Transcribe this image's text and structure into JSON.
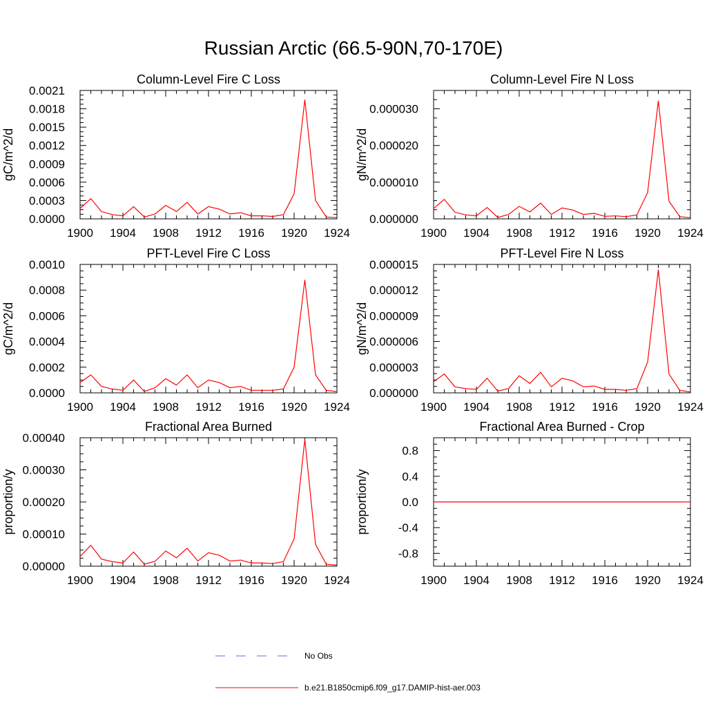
{
  "page": {
    "title": "Russian Arctic (66.5-90N,70-170E)"
  },
  "legend": {
    "items": [
      {
        "label": "No Obs",
        "style": "dashed",
        "color": "#6b6bd6"
      },
      {
        "label": "b.e21.B1850cmip6.f09_g17.DAMIP-hist-aer.003",
        "style": "solid",
        "color": "#ff0000"
      }
    ]
  },
  "chart_data": [
    {
      "type": "line",
      "title": "Column-Level Fire C Loss",
      "ylabel": "gC/m^2/d",
      "xlim": [
        1900,
        1924
      ],
      "ylim": [
        0,
        0.0021
      ],
      "xticks": [
        "1900",
        "1904",
        "1908",
        "1912",
        "1916",
        "1920",
        "1924"
      ],
      "yticks": [
        "0.0000",
        "0.0003",
        "0.0006",
        "0.0009",
        "0.0012",
        "0.0015",
        "0.0018",
        "0.0021"
      ],
      "series": [
        {
          "color": "#ff0000",
          "x": [
            1900,
            1901,
            1902,
            1903,
            1904,
            1905,
            1906,
            1907,
            1908,
            1909,
            1910,
            1911,
            1912,
            1913,
            1914,
            1915,
            1916,
            1917,
            1918,
            1919,
            1920,
            1921,
            1922,
            1923,
            1924
          ],
          "values": [
            0.00017,
            0.00033,
            0.00012,
            7e-05,
            5e-05,
            0.0002,
            3e-05,
            8e-05,
            0.00022,
            0.00012,
            0.00027,
            8e-05,
            0.0002,
            0.00016,
            8e-05,
            0.0001,
            5e-05,
            5e-05,
            4e-05,
            7e-05,
            0.00041,
            0.00195,
            0.0003,
            3e-05,
            2e-05
          ]
        }
      ]
    },
    {
      "type": "line",
      "title": "Column-Level Fire N Loss",
      "ylabel": "gN/m^2/d",
      "xlim": [
        1900,
        1924
      ],
      "ylim": [
        0,
        3.5e-05
      ],
      "xticks": [
        "1900",
        "1904",
        "1908",
        "1912",
        "1916",
        "1920",
        "1924"
      ],
      "yticks": [
        "0.000000",
        "0.000010",
        "0.000020",
        "0.000030"
      ],
      "series": [
        {
          "color": "#ff0000",
          "x": [
            1900,
            1901,
            1902,
            1903,
            1904,
            1905,
            1906,
            1907,
            1908,
            1909,
            1910,
            1911,
            1912,
            1913,
            1914,
            1915,
            1916,
            1917,
            1918,
            1919,
            1920,
            1921,
            1922,
            1923,
            1924
          ],
          "values": [
            2.8e-06,
            5.3e-06,
            1.8e-06,
            1.1e-06,
            8e-07,
            3.1e-06,
            4e-07,
            1.2e-06,
            3.4e-06,
            1.9e-06,
            4.3e-06,
            1.2e-06,
            3e-06,
            2.4e-06,
            1.2e-06,
            1.5e-06,
            7e-07,
            8e-07,
            6e-07,
            1.1e-06,
            7.2e-06,
            3.22e-05,
            4.8e-06,
            6e-07,
            3e-07
          ]
        }
      ]
    },
    {
      "type": "line",
      "title": "PFT-Level Fire C Loss",
      "ylabel": "gC/m^2/d",
      "xlim": [
        1900,
        1924
      ],
      "ylim": [
        0,
        0.001
      ],
      "xticks": [
        "1900",
        "1904",
        "1908",
        "1912",
        "1916",
        "1920",
        "1924"
      ],
      "yticks": [
        "0.0000",
        "0.0002",
        "0.0004",
        "0.0006",
        "0.0008",
        "0.0010"
      ],
      "series": [
        {
          "color": "#ff0000",
          "x": [
            1900,
            1901,
            1902,
            1903,
            1904,
            1905,
            1906,
            1907,
            1908,
            1909,
            1910,
            1911,
            1912,
            1913,
            1914,
            1915,
            1916,
            1917,
            1918,
            1919,
            1920,
            1921,
            1922,
            1923,
            1924
          ],
          "values": [
            8e-05,
            0.00014,
            5e-05,
            3e-05,
            2e-05,
            0.0001,
            1e-05,
            4e-05,
            0.00011,
            6e-05,
            0.00014,
            4e-05,
            0.0001,
            8e-05,
            4e-05,
            5e-05,
            2e-05,
            2e-05,
            2e-05,
            3e-05,
            0.0002,
            0.00088,
            0.00014,
            2e-05,
            1e-05
          ]
        }
      ]
    },
    {
      "type": "line",
      "title": "PFT-Level Fire N Loss",
      "ylabel": "gN/m^2/d",
      "xlim": [
        1900,
        1924
      ],
      "ylim": [
        0,
        1.5e-05
      ],
      "xticks": [
        "1900",
        "1904",
        "1908",
        "1912",
        "1916",
        "1920",
        "1924"
      ],
      "yticks": [
        "0.000000",
        "0.000003",
        "0.000006",
        "0.000009",
        "0.000012",
        "0.000015"
      ],
      "series": [
        {
          "color": "#ff0000",
          "x": [
            1900,
            1901,
            1902,
            1903,
            1904,
            1905,
            1906,
            1907,
            1908,
            1909,
            1910,
            1911,
            1912,
            1913,
            1914,
            1915,
            1916,
            1917,
            1918,
            1919,
            1920,
            1921,
            1922,
            1923,
            1924
          ],
          "values": [
            1.3e-06,
            2.2e-06,
            7e-07,
            5e-07,
            4e-07,
            1.7e-06,
            2e-07,
            5e-07,
            2e-06,
            1.1e-06,
            2.4e-06,
            7e-07,
            1.7e-06,
            1.4e-06,
            7e-07,
            8e-07,
            4e-07,
            4e-07,
            3e-07,
            5e-07,
            3.6e-06,
            1.44e-05,
            2.2e-06,
            3e-07,
            1e-07
          ]
        }
      ]
    },
    {
      "type": "line",
      "title": "Fractional Area Burned",
      "ylabel": "proportion/y",
      "xlim": [
        1900,
        1924
      ],
      "ylim": [
        0,
        0.0004
      ],
      "xticks": [
        "1900",
        "1904",
        "1908",
        "1912",
        "1916",
        "1920",
        "1924"
      ],
      "yticks": [
        "0.00000",
        "0.00010",
        "0.00020",
        "0.00030",
        "0.00040"
      ],
      "series": [
        {
          "color": "#ff0000",
          "x": [
            1900,
            1901,
            1902,
            1903,
            1904,
            1905,
            1906,
            1907,
            1908,
            1909,
            1910,
            1911,
            1912,
            1913,
            1914,
            1915,
            1916,
            1917,
            1918,
            1919,
            1920,
            1921,
            1922,
            1923,
            1924
          ],
          "values": [
            3e-05,
            6.5e-05,
            2.2e-05,
            1.4e-05,
            1e-05,
            4.4e-05,
            6e-06,
            1.5e-05,
            4.7e-05,
            2.6e-05,
            5.6e-05,
            1.6e-05,
            4.2e-05,
            3.4e-05,
            1.6e-05,
            1.9e-05,
            1e-05,
            1e-05,
            8e-06,
            1.4e-05,
            8.5e-05,
            0.000395,
            6.8e-05,
            6e-06,
            3e-06
          ]
        }
      ]
    },
    {
      "type": "line",
      "title": "Fractional Area Burned - Crop",
      "ylabel": "proportion/y",
      "xlim": [
        1900,
        1924
      ],
      "ylim": [
        -1,
        1
      ],
      "xticks": [
        "1900",
        "1904",
        "1908",
        "1912",
        "1916",
        "1920",
        "1924"
      ],
      "yticks": [
        "-0.8",
        "-0.4",
        "0.0",
        "0.4",
        "0.8"
      ],
      "series": [
        {
          "color": "#ff0000",
          "x": [
            1900,
            1901,
            1902,
            1903,
            1904,
            1905,
            1906,
            1907,
            1908,
            1909,
            1910,
            1911,
            1912,
            1913,
            1914,
            1915,
            1916,
            1917,
            1918,
            1919,
            1920,
            1921,
            1922,
            1923,
            1924
          ],
          "values": [
            0,
            0,
            0,
            0,
            0,
            0,
            0,
            0,
            0,
            0,
            0,
            0,
            0,
            0,
            0,
            0,
            0,
            0,
            0,
            0,
            0,
            0,
            0,
            0,
            0
          ]
        }
      ]
    }
  ]
}
